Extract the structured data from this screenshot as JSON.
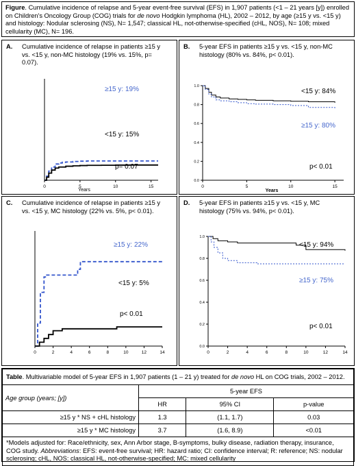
{
  "figure": {
    "label": "Figure",
    "caption_pre": ". Cumulative incidence of relapse and 5-year event-free survival (EFS) in 1,907 patients (<1 – 21 years [y]) enrolled on Children's Oncology Group (COG) trials for ",
    "caption_italic": "de novo",
    "caption_post": " Hodgkin lymphoma (HL), 2002 – 2012, by age (≥15 y vs. <15 y) and histology: Nodular sclerosing (NS), N= 1,547; classical HL, not-otherwise-specified (cHL, NOS), N= 108; mixed cellularity (MC), N= 196."
  },
  "panels": {
    "A": {
      "letter": "A.",
      "title": "Cumulative incidence of relapse in patients ≥15 y vs. <15 y, non-MC histology (19% vs. 15%, p= 0.07).",
      "label_old": "≥15 y: 19%",
      "label_young": "<15 y: 15%",
      "pvalue": "p= 0.07",
      "xlabel": "Years",
      "xticks": [
        "0",
        "5",
        "10",
        "15"
      ]
    },
    "B": {
      "letter": "B.",
      "title": "5-year EFS in patients ≥15 y vs. <15 y, non-MC histology (80% vs. 84%, p< 0.01).",
      "label_young": "<15 y: 84%",
      "label_old": "≥15 y: 80%",
      "pvalue": "p< 0.01",
      "xlabel": "Years",
      "xticks": [
        "0",
        "5",
        "10",
        "15"
      ],
      "yticks": [
        "1.0",
        "0.8",
        "0.6",
        "0.4",
        "0.2",
        "0.0"
      ]
    },
    "C": {
      "letter": "C.",
      "title": "Cumulative incidence of relapse in patients ≥15 y vs. <15 y, MC histology (22% vs. 5%, p< 0.01).",
      "label_old": "≥15 y: 22%",
      "label_young": "<15 y: 5%",
      "pvalue": "p< 0.01",
      "xticks": [
        "0",
        "2",
        "4",
        "6",
        "8",
        "10",
        "12",
        "14"
      ]
    },
    "D": {
      "letter": "D.",
      "title": "5-year EFS in patients ≥15 y vs. <15 y, MC histology (75% vs. 94%, p< 0.01).",
      "label_young": "<15 y: 94%",
      "label_old": "≥15 y: 75%",
      "pvalue": "p< 0.01",
      "xticks": [
        "0",
        "2",
        "4",
        "6",
        "8",
        "10",
        "12",
        "14"
      ],
      "yticks": [
        "1.0",
        "0.8",
        "0.6",
        "0.4",
        "0.2",
        "0.0"
      ]
    }
  },
  "colors": {
    "old": "#3355cc",
    "young": "#000000",
    "label_blue": "#4466cc"
  },
  "chart_data": [
    {
      "type": "line",
      "panel": "A",
      "title": "Cumulative incidence of relapse in patients ≥15 y vs. <15 y, non-MC histology (19% vs. 15%, p= 0.07).",
      "xlabel": "Years",
      "ylabel": "",
      "xlim": [
        0,
        16
      ],
      "ylim": [
        0,
        1
      ],
      "series": [
        {
          "name": "≥15 y: 19%",
          "x": [
            0,
            0.3,
            0.6,
            1,
            1.5,
            2,
            2.5,
            3,
            4,
            5,
            6,
            8,
            10,
            16
          ],
          "y": [
            0,
            0.04,
            0.09,
            0.13,
            0.16,
            0.17,
            0.177,
            0.18,
            0.185,
            0.188,
            0.19,
            0.19,
            0.19,
            0.19
          ]
        },
        {
          "name": "<15 y: 15%",
          "x": [
            0,
            0.3,
            0.6,
            1,
            1.5,
            2,
            3,
            4,
            5,
            6,
            8,
            10,
            12,
            16
          ],
          "y": [
            0,
            0.03,
            0.07,
            0.1,
            0.12,
            0.13,
            0.138,
            0.142,
            0.145,
            0.147,
            0.148,
            0.149,
            0.15,
            0.15
          ]
        }
      ]
    },
    {
      "type": "line",
      "panel": "B",
      "title": "5-year EFS in patients ≥15 y vs. <15 y, non-MC histology (80% vs. 84%, p< 0.01).",
      "xlabel": "Years",
      "ylabel": "",
      "xlim": [
        0,
        16
      ],
      "ylim": [
        0,
        1
      ],
      "series": [
        {
          "name": "<15 y: 84%",
          "x": [
            0,
            0.3,
            0.7,
            1,
            1.5,
            2,
            3,
            4,
            5,
            6,
            8,
            10,
            12,
            15
          ],
          "y": [
            1,
            0.97,
            0.93,
            0.9,
            0.88,
            0.87,
            0.86,
            0.855,
            0.85,
            0.845,
            0.84,
            0.835,
            0.83,
            0.82
          ]
        },
        {
          "name": "≥15 y: 80%",
          "x": [
            0,
            0.3,
            0.7,
            1,
            1.5,
            2,
            3,
            4,
            5,
            6,
            8,
            10,
            12,
            15
          ],
          "y": [
            1,
            0.96,
            0.91,
            0.88,
            0.85,
            0.84,
            0.83,
            0.82,
            0.81,
            0.805,
            0.8,
            0.79,
            0.77,
            0.75
          ]
        }
      ]
    },
    {
      "type": "line",
      "panel": "C",
      "title": "Cumulative incidence of relapse in patients ≥15 y vs. <15 y, MC histology (22% vs. 5%, p< 0.01).",
      "xlabel": "",
      "ylabel": "",
      "xlim": [
        0,
        14
      ],
      "ylim": [
        0,
        0.3
      ],
      "series": [
        {
          "name": "≥15 y: 22%",
          "x": [
            0,
            0.3,
            0.6,
            1,
            1.3,
            4.5,
            4.7,
            5,
            14
          ],
          "y": [
            0,
            0.06,
            0.14,
            0.18,
            0.185,
            0.185,
            0.2,
            0.22,
            0.22
          ]
        },
        {
          "name": "<15 y: 5%",
          "x": [
            0,
            0.5,
            1,
            1.5,
            2,
            3,
            9,
            14
          ],
          "y": [
            0,
            0.01,
            0.02,
            0.03,
            0.04,
            0.045,
            0.05,
            0.05
          ]
        }
      ]
    },
    {
      "type": "line",
      "panel": "D",
      "title": "5-year EFS in patients ≥15 y vs. <15 y, MC histology (75% vs. 94%, p< 0.01).",
      "xlabel": "",
      "ylabel": "",
      "xlim": [
        0,
        14
      ],
      "ylim": [
        0,
        1
      ],
      "series": [
        {
          "name": "<15 y: 94%",
          "x": [
            0,
            0.5,
            1,
            2,
            3,
            5,
            9,
            10,
            14
          ],
          "y": [
            1,
            0.98,
            0.96,
            0.95,
            0.94,
            0.94,
            0.92,
            0.88,
            0.87
          ]
        },
        {
          "name": "≥15 y: 75%",
          "x": [
            0,
            0.3,
            0.6,
            1,
            1.5,
            2,
            3,
            5,
            9,
            14
          ],
          "y": [
            1,
            0.95,
            0.9,
            0.85,
            0.8,
            0.78,
            0.76,
            0.75,
            0.75,
            0.75
          ]
        }
      ]
    }
  ],
  "table": {
    "label": "Table",
    "title_pre": ". Multivariable model of 5-year EFS in 1,907 patients (1 – 21 y) treated for ",
    "title_italic": "de novo",
    "title_post": " HL on COG trials, 2002 – 2012.",
    "group_header": "5-year EFS",
    "row_header": "Age group (years; [y])",
    "columns": [
      "HR",
      "95% CI",
      "p-value"
    ],
    "rows": [
      {
        "label": "≥15 y * NS + cHL histology",
        "hr": "1.3",
        "ci": "(1.1, 1.7)",
        "p": "0.03"
      },
      {
        "label": "≥15 y * MC histology",
        "hr": "3.7",
        "ci": "(1.6, 8.9)",
        "p": "<0.01"
      }
    ],
    "footnote_pre": "*Models adjusted for: Race/ethnicity, sex, Ann Arbor stage, B-symptoms, bulky disease, radiation therapy, insurance, COG study. ",
    "footnote_italic": "Abbreviations",
    "footnote_post": ": EFS: event-free survival; HR: hazard ratio; CI: confidence interval; R: reference; NS: nodular sclerosing; cHL, NOS: classical HL, not-otherwise-specified; MC: mixed cellularity"
  }
}
